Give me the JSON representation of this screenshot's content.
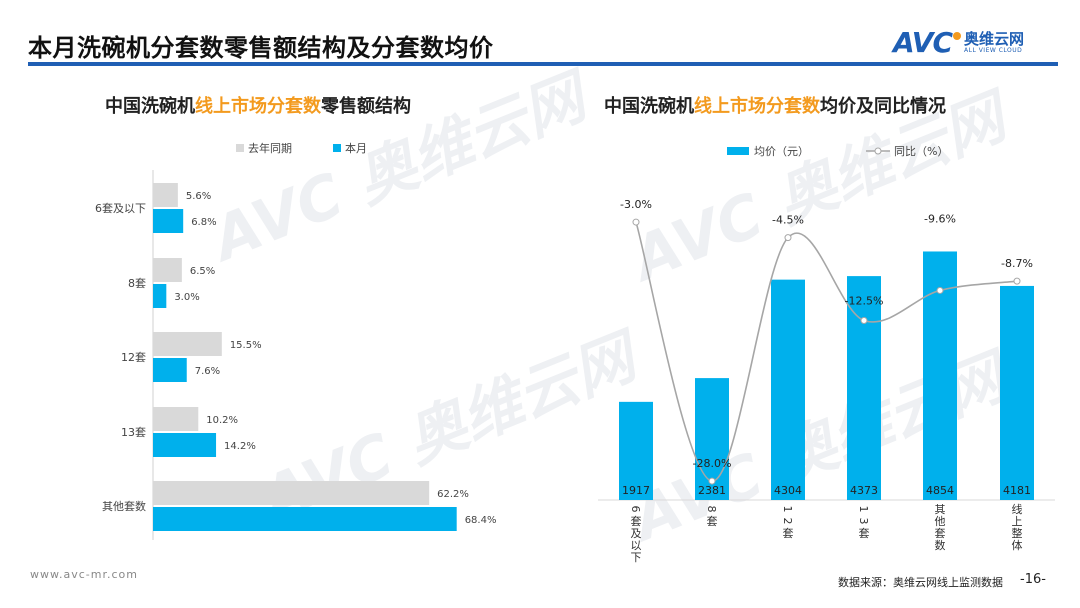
{
  "header": {
    "title": "本月洗碗机分套数零售额结构及分套数均价",
    "logo_cn": "奥维云网",
    "logo_en": "ALL VIEW CLOUD",
    "logo_mark": "AVC"
  },
  "watermark": {
    "text": "奥维云网",
    "sub": "ALL VIEW CLOUD"
  },
  "footer": {
    "url": "www.avc-mr.com",
    "source": "数据来源：奥维云网线上监测数据",
    "page": "-16-"
  },
  "colors": {
    "blue": "#00b0ec",
    "gray": "#d9d9d9",
    "line": "#a6a6a6",
    "accent": "#f39a1e",
    "brand": "#1f5fb4"
  },
  "chart_data": [
    {
      "type": "bar",
      "orientation": "horizontal",
      "title_parts": [
        "中国洗碗机",
        "线上市场分套数",
        "零售额结构"
      ],
      "categories": [
        "6套及以下",
        "8套",
        "12套",
        "13套",
        "其他套数"
      ],
      "series": [
        {
          "name": "去年同期",
          "values": [
            5.6,
            6.5,
            15.5,
            10.2,
            62.2
          ],
          "labels": [
            "5.6%",
            "6.5%",
            "15.5%",
            "10.2%",
            "62.2%"
          ]
        },
        {
          "name": "本月",
          "values": [
            6.8,
            3.0,
            7.6,
            14.2,
            68.4
          ],
          "labels": [
            "6.8%",
            "3.0%",
            "7.6%",
            "14.2%",
            "68.4%"
          ]
        }
      ],
      "legend": "top"
    },
    {
      "type": "bar+line",
      "title_parts": [
        "中国洗碗机",
        "线上市场分套数",
        "均价及同比情况"
      ],
      "categories": [
        "6套及以下",
        "8套",
        "12套",
        "13套",
        "其他套数",
        "线上整体"
      ],
      "series": [
        {
          "name": "均价（元）",
          "type": "bar",
          "values": [
            1917,
            2381,
            4304,
            4373,
            4854,
            4181
          ],
          "labels": [
            "1917",
            "2381",
            "4304",
            "4373",
            "4854",
            "4181"
          ]
        },
        {
          "name": "同比（%）",
          "type": "line",
          "values": [
            -3.0,
            -28.0,
            -4.5,
            -12.5,
            -9.6,
            -8.7
          ],
          "labels": [
            "-3.0%",
            "-28.0%",
            "-4.5%",
            "-12.5%",
            "-9.6%",
            "-8.7%"
          ]
        }
      ],
      "legend": "top"
    }
  ]
}
